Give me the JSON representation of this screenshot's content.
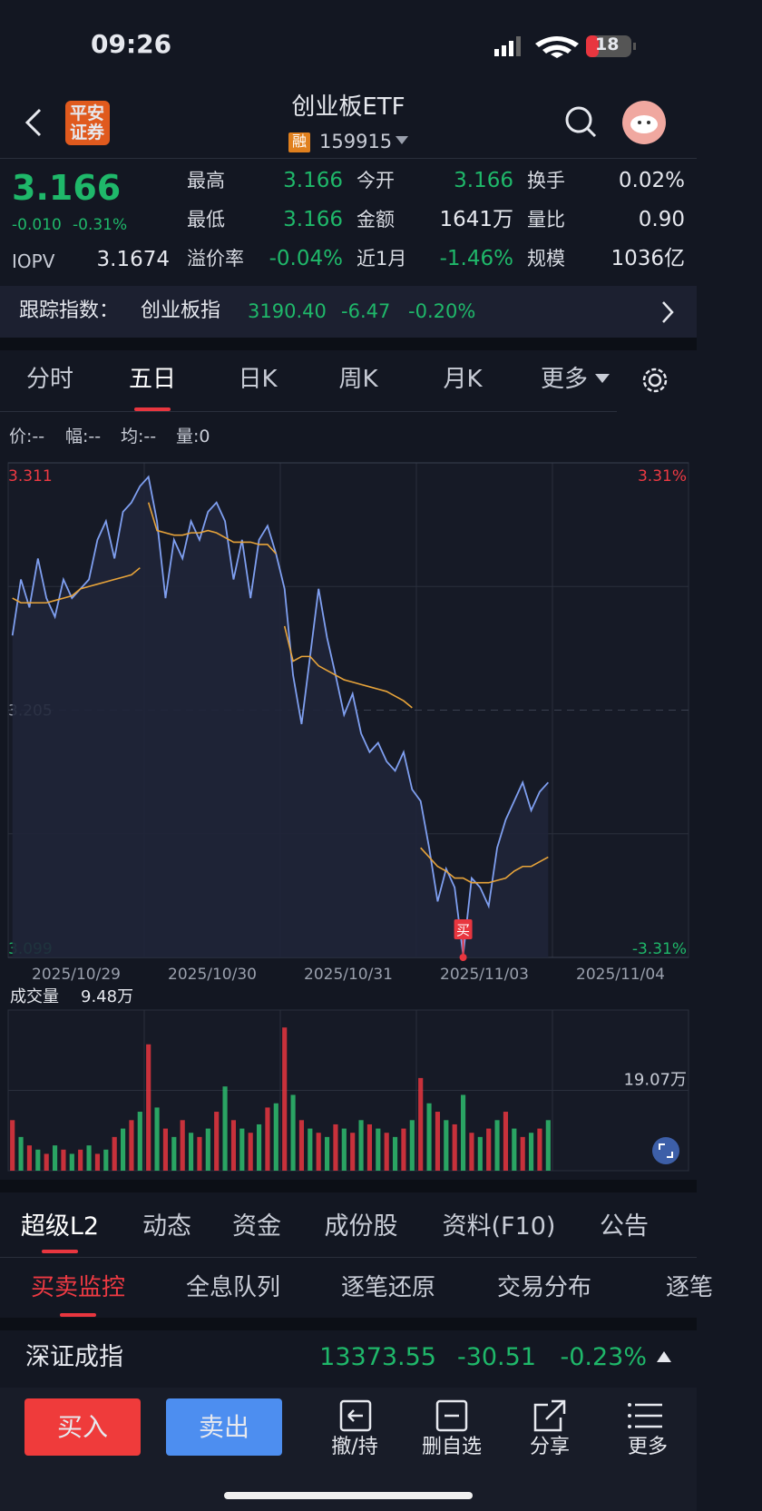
{
  "status_bar": {
    "time": "09:26",
    "battery": "18"
  },
  "header": {
    "logo": [
      "平安",
      "证券"
    ],
    "title": "创业板ETF",
    "badge": "融",
    "code": "159915"
  },
  "quote": {
    "price": "3.166",
    "change": "-0.010",
    "change_pct": "-0.31%",
    "iopv_label": "IOPV",
    "iopv": "3.1674",
    "stats": [
      {
        "label": "最高",
        "value": "3.166",
        "color": "#1fb86a"
      },
      {
        "label": "今开",
        "value": "3.166",
        "color": "#1fb86a"
      },
      {
        "label": "换手",
        "value": "0.02%",
        "color": "#e6e8ee"
      },
      {
        "label": "最低",
        "value": "3.166",
        "color": "#1fb86a"
      },
      {
        "label": "金额",
        "value": "1641万",
        "color": "#e6e8ee"
      },
      {
        "label": "量比",
        "value": "0.90",
        "color": "#e6e8ee"
      },
      {
        "label": "溢价率",
        "value": "-0.04%",
        "color": "#1fb86a"
      },
      {
        "label": "近1月",
        "value": "-1.46%",
        "color": "#1fb86a"
      },
      {
        "label": "规模",
        "value": "1036亿",
        "color": "#e6e8ee"
      }
    ]
  },
  "tracking": {
    "label": "跟踪指数：",
    "index": "创业板指",
    "value": "3190.40",
    "change": "-6.47",
    "change_pct": "-0.20%"
  },
  "chart_tabs": [
    "分时",
    "五日",
    "日K",
    "周K",
    "月K",
    "更多"
  ],
  "chart_info": [
    "价:--",
    "幅:--",
    "均:--",
    "量:0"
  ],
  "chart_data": {
    "type": "line",
    "categories": [
      "2025/10/29",
      "2025/10/30",
      "2025/10/31",
      "2025/11/03",
      "2025/11/04"
    ],
    "ylim": [
      3.099,
      3.311
    ],
    "yticks": [
      3.311,
      3.205,
      3.099
    ],
    "y2lim": [
      -3.31,
      3.31
    ],
    "y2ticks": [
      {
        "value": 3.31,
        "label": "3.31%"
      },
      {
        "value": -3.31,
        "label": "-3.31%"
      }
    ],
    "price_color": "#7f9ff0",
    "avg_color": "#e8a43a",
    "price": [
      [
        3.237,
        3.261,
        3.249,
        3.27,
        3.253,
        3.245,
        3.261,
        3.253,
        3.257,
        3.261,
        3.278,
        3.286,
        3.27,
        3.29,
        3.294,
        3.301
      ],
      [
        3.305,
        3.286,
        3.253,
        3.278,
        3.27,
        3.286,
        3.278,
        3.29,
        3.294,
        3.286,
        3.261,
        3.278,
        3.253,
        3.278,
        3.284,
        3.272
      ],
      [
        3.257,
        3.22,
        3.199,
        3.228,
        3.257,
        3.236,
        3.22,
        3.203,
        3.212,
        3.195,
        3.187,
        3.191,
        3.183,
        3.179,
        3.187,
        3.171
      ],
      [
        3.166,
        3.146,
        3.123,
        3.137,
        3.129,
        3.1,
        3.133,
        3.129,
        3.121,
        3.146,
        3.158,
        3.166,
        3.174,
        3.162,
        3.17,
        3.174
      ],
      []
    ],
    "avg": [
      [
        3.253,
        3.251,
        3.251,
        3.251,
        3.251,
        3.252,
        3.253,
        3.254,
        3.257,
        3.258,
        3.259,
        3.26,
        3.261,
        3.262,
        3.263,
        3.266
      ],
      [
        3.294,
        3.282,
        3.281,
        3.28,
        3.28,
        3.281,
        3.281,
        3.282,
        3.281,
        3.279,
        3.277,
        3.277,
        3.277,
        3.276,
        3.276,
        3.272
      ],
      [
        3.241,
        3.226,
        3.228,
        3.228,
        3.224,
        3.222,
        3.22,
        3.218,
        3.217,
        3.216,
        3.215,
        3.214,
        3.213,
        3.211,
        3.209,
        3.206
      ],
      [
        3.146,
        3.142,
        3.138,
        3.136,
        3.133,
        3.133,
        3.131,
        3.131,
        3.131,
        3.132,
        3.133,
        3.136,
        3.138,
        3.138,
        3.14,
        3.142
      ],
      []
    ],
    "buy_marker": "买"
  },
  "volume_chart": {
    "title": "成交量",
    "latest": "9.48万",
    "ylim": [
      0,
      38.14
    ],
    "yticks": [
      {
        "value": 19.07,
        "label": "19.07万"
      }
    ],
    "colors": [
      "#e8363f",
      "#2ebd6e"
    ],
    "values": [
      [
        12,
        8,
        6,
        5,
        4,
        6,
        5,
        4,
        5,
        6,
        4,
        5,
        8,
        10,
        12,
        14
      ],
      [
        30,
        15,
        10,
        8,
        12,
        9,
        8,
        10,
        14,
        20,
        12,
        10,
        9,
        11,
        15,
        16
      ],
      [
        34,
        18,
        12,
        10,
        9,
        8,
        11,
        10,
        9,
        12,
        11,
        10,
        9,
        8,
        10,
        12
      ],
      [
        22,
        16,
        14,
        12,
        11,
        18,
        9,
        8,
        10,
        12,
        14,
        10,
        8,
        9,
        10,
        12
      ],
      []
    ]
  },
  "detail_tabs": [
    "超级L2",
    "动态",
    "资金",
    "成份股",
    "资料(F10)",
    "公告"
  ],
  "sub_tabs": [
    "买卖监控",
    "全息队列",
    "逐笔还原",
    "交易分布",
    "逐笔"
  ],
  "index_row": {
    "name": "深证成指",
    "value": "13373.55",
    "change": "-30.51",
    "change_pct": "-0.23%"
  },
  "bottom_bar": {
    "buy": "买入",
    "sell": "卖出",
    "actions": [
      "撤/持",
      "删自选",
      "分享",
      "更多"
    ]
  }
}
